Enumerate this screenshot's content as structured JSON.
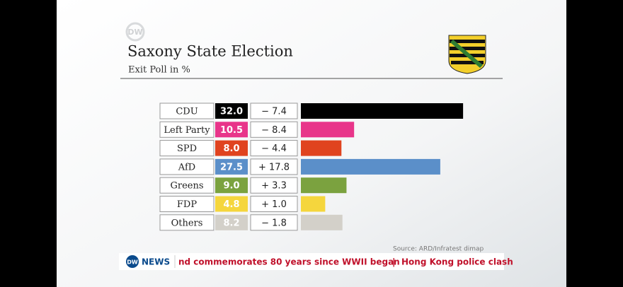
{
  "chart_data": {
    "type": "bar",
    "orientation": "horizontal",
    "title": "Saxony State Election",
    "subtitle": "Exit Poll in %",
    "categories": [
      "CDU",
      "Left Party",
      "SPD",
      "AfD",
      "Greens",
      "FDP",
      "Others"
    ],
    "values": [
      32.0,
      10.5,
      8.0,
      27.5,
      9.0,
      4.8,
      8.2
    ],
    "value_labels": [
      "32.0",
      "10.5",
      "8.0",
      "27.5",
      "9.0",
      "4.8",
      "8.2"
    ],
    "changes": [
      -7.4,
      -8.4,
      -4.4,
      17.8,
      3.3,
      1.0,
      -1.8
    ],
    "change_labels": [
      "− 7.4",
      "− 8.4",
      "− 4.4",
      "+ 17.8",
      "+ 3.3",
      "+ 1.0",
      "− 1.8"
    ],
    "colors": [
      "#000000",
      "#e8358a",
      "#e0431f",
      "#5b8fc9",
      "#7ba23f",
      "#f5d63d",
      "#d3d0c9"
    ],
    "source": "Source: ARD/Infratest dimap"
  },
  "logo": "DW",
  "ticker": {
    "brand": "DW",
    "channel": "NEWS",
    "items": [
      "nd commemorates 80 years since WWII began",
      "|",
      "Hong Kong police clash"
    ]
  }
}
